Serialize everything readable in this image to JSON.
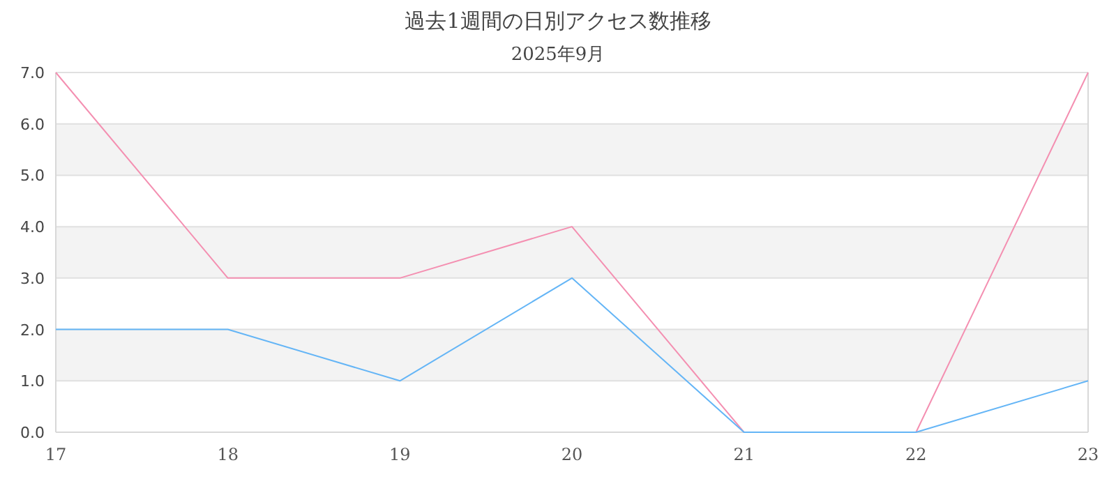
{
  "chart_data": {
    "type": "line",
    "title": "過去1週間の日別アクセス数推移",
    "subtitle": "2025年9月",
    "categories": [
      "17",
      "18",
      "19",
      "20",
      "21",
      "22",
      "23"
    ],
    "series": [
      {
        "color": "#f48fb1",
        "values": [
          7,
          3,
          3,
          4,
          0,
          0,
          7
        ]
      },
      {
        "color": "#64b5f6",
        "values": [
          2,
          2,
          1,
          3,
          0,
          0,
          1
        ]
      }
    ],
    "ylim": [
      0,
      7
    ],
    "yticks": [
      {
        "value": 0,
        "label": "0.0"
      },
      {
        "value": 1,
        "label": "1.0"
      },
      {
        "value": 2,
        "label": "2.0"
      },
      {
        "value": 3,
        "label": "3.0"
      },
      {
        "value": 4,
        "label": "4.0"
      },
      {
        "value": 5,
        "label": "5.0"
      },
      {
        "value": 6,
        "label": "6.0"
      },
      {
        "value": 7,
        "label": "7.0"
      }
    ],
    "grid": "y",
    "marker": "none",
    "line_style": "solid"
  }
}
